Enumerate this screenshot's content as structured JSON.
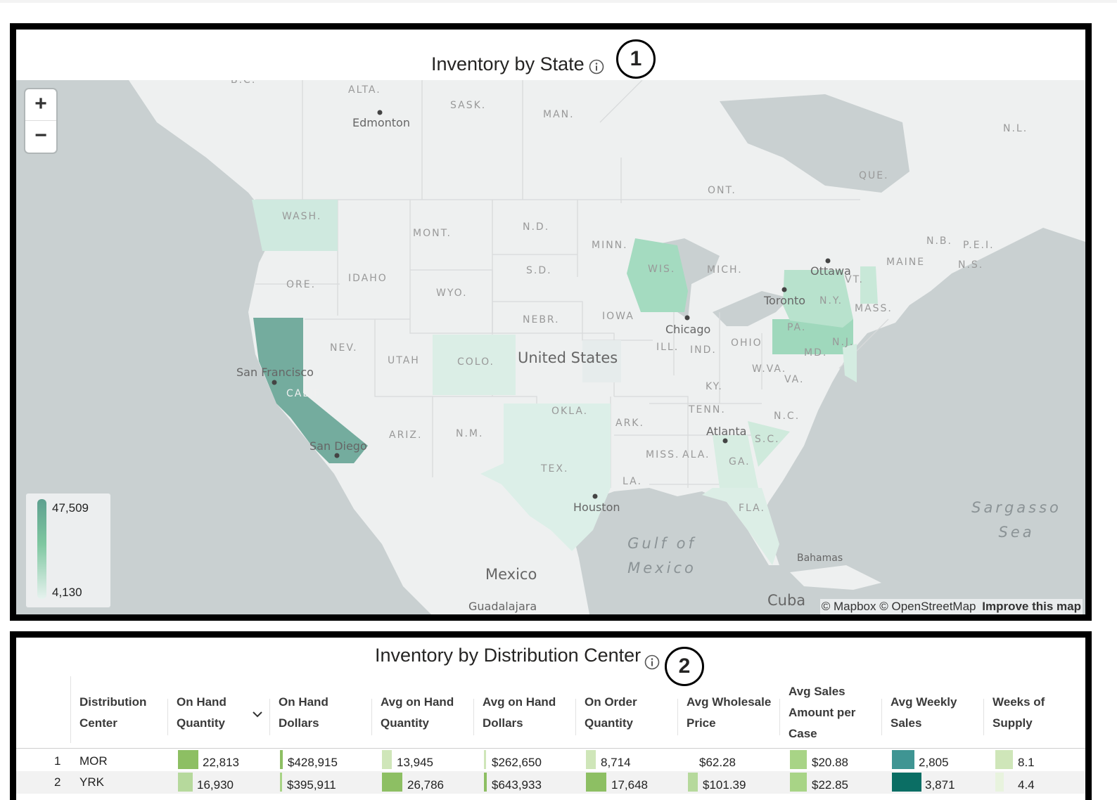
{
  "map_panel": {
    "title": "Inventory by State",
    "badge": "1",
    "zoom_in": "+",
    "zoom_out": "−",
    "legend": {
      "max": "47,509",
      "min": "4,130",
      "color_high": "#5ea08f",
      "color_low": "#e6f2ee"
    },
    "attribution": {
      "mapbox": "© Mapbox",
      "osm": "© OpenStreetMap",
      "improve": "Improve this map"
    },
    "state_labels": [
      "WASH.",
      "ORE.",
      "IDAHO",
      "MONT.",
      "WYO.",
      "N.D.",
      "S.D.",
      "NEBR.",
      "MINN.",
      "IOWA",
      "WIS.",
      "MICH.",
      "ILL.",
      "IND.",
      "OHIO",
      "NEV.",
      "UTAH",
      "COLO.",
      "CALIF.",
      "ARIZ.",
      "N.M.",
      "OKLA.",
      "TEX.",
      "ARK.",
      "LA.",
      "MISS.",
      "ALA.",
      "GA.",
      "FLA.",
      "TENN.",
      "KY.",
      "W.VA.",
      "VA.",
      "N.C.",
      "S.C.",
      "PA.",
      "N.Y.",
      "MD.",
      "N.J.",
      "MASS.",
      "VT.",
      "MAINE"
    ],
    "region_labels": [
      "B.C.",
      "ALTA.",
      "SASK.",
      "MAN.",
      "ONT.",
      "QUE.",
      "N.L.",
      "N.B.",
      "P.E.I.",
      "N.S."
    ],
    "city_labels": [
      "Edmonton",
      "Ottawa",
      "Toronto",
      "Chicago",
      "San Francisco",
      "San Diego",
      "Atlanta",
      "Houston",
      "Guadalajara",
      "Bahamas"
    ],
    "country_labels": [
      "United States",
      "Mexico",
      "Cuba"
    ],
    "sea_labels": [
      "Gulf of Mexico",
      "Sargasso Sea"
    ],
    "sea_lines": {
      "gulf_1": "Gulf of",
      "gulf_2": "Mexico",
      "sargasso_1": "Sargasso",
      "sargasso_2": "Sea"
    }
  },
  "table_panel": {
    "title": "Inventory by Distribution Center",
    "badge": "2",
    "columns": [
      {
        "l1": "Distribution",
        "l2": "Center"
      },
      {
        "l1": "On Hand",
        "l2": "Quantity"
      },
      {
        "l1": "On Hand",
        "l2": "Dollars"
      },
      {
        "l1": "Avg on Hand",
        "l2": "Quantity"
      },
      {
        "l1": "Avg on Hand",
        "l2": "Dollars"
      },
      {
        "l1": "On Order",
        "l2": "Quantity"
      },
      {
        "l1": "Avg Wholesale",
        "l2": "Price"
      },
      {
        "l1": "Avg Sales",
        "l2": "Amount per",
        "l3": "Case"
      },
      {
        "l1": "Avg Weekly",
        "l2": "Sales"
      },
      {
        "l1": "Weeks of",
        "l2": "Supply"
      }
    ],
    "sort_indicator": "chevron-down-icon",
    "rows": [
      {
        "index": "1",
        "center": "MOR",
        "on_hand_qty": "22,813",
        "on_hand_dollars": "$428,915",
        "avg_on_hand_qty": "13,945",
        "avg_on_hand_dollars": "$262,650",
        "on_order_qty": "8,714",
        "avg_wholesale_price": "$62.28",
        "avg_sales_per_case": "$20.88",
        "avg_weekly_sales": "2,805",
        "weeks_of_supply": "8.1"
      },
      {
        "index": "2",
        "center": "YRK",
        "on_hand_qty": "16,930",
        "on_hand_dollars": "$395,911",
        "avg_on_hand_qty": "26,786",
        "avg_on_hand_dollars": "$643,933",
        "on_order_qty": "17,648",
        "avg_wholesale_price": "$101.39",
        "avg_sales_per_case": "$22.85",
        "avg_weekly_sales": "3,871",
        "weeks_of_supply": "4.4"
      }
    ]
  }
}
